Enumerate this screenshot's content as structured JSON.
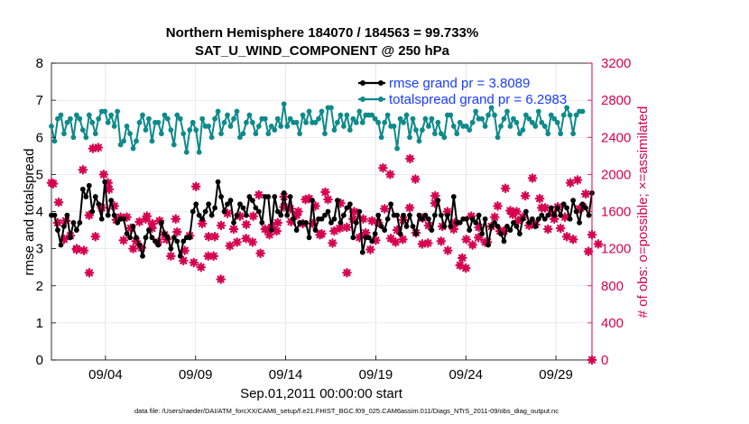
{
  "chart_data": {
    "type": "line",
    "title_line1": "Northern Hemisphere 184070 / 184563 = 99.733%",
    "title_line2": "SAT_U_WIND_COMPONENT @ 250 hPa",
    "xlabel": "Sep.01,2011 00:00:00 start",
    "ylabel_left": "rmse and totalspread",
    "ylabel_right": "# of obs: o=possible; ×=assimilated",
    "footnote": "data file: /Users/raeder/DAI/ATM_forcXX/CAM6_setup/f.e21.FHIST_BGC.f09_025.CAM6assim.011/Diags_NTrS_2011-09/obs_diag_output.nc",
    "xlim": [
      1.0,
      31.0
    ],
    "ylim_left": [
      0,
      8
    ],
    "ylim_right": [
      0,
      3200
    ],
    "x_ticks": [
      {
        "value": 4,
        "label": "09/04"
      },
      {
        "value": 9,
        "label": "09/09"
      },
      {
        "value": 14,
        "label": "09/14"
      },
      {
        "value": 19,
        "label": "09/19"
      },
      {
        "value": 24,
        "label": "09/24"
      },
      {
        "value": 29,
        "label": "09/29"
      }
    ],
    "y_ticks_left": [
      "0",
      "1",
      "2",
      "3",
      "4",
      "5",
      "6",
      "7",
      "8"
    ],
    "y_ticks_right": [
      "0",
      "400",
      "800",
      "1200",
      "1600",
      "2000",
      "2400",
      "2800",
      "3200"
    ],
    "colors": {
      "rmse": "#000000",
      "spread": "#0f8a8a",
      "obs": "#d6004f",
      "legend_text": "#1a3cff"
    },
    "legend": [
      {
        "key": "rmse",
        "label": "rmse grand pr = 3.8089"
      },
      {
        "key": "spread",
        "label": "totalspread grand pr = 6.2983"
      }
    ],
    "series_rmse": [
      3.9,
      3.9,
      3.5,
      3.1,
      3.6,
      3.9,
      3.3,
      3.7,
      3.5,
      3.7,
      4.6,
      4.4,
      4.7,
      4.0,
      4.4,
      4.2,
      3.8,
      4.8,
      3.9,
      4.3,
      3.9,
      3.7,
      3.8,
      3.8,
      3.4,
      3.3,
      3.6,
      3.3,
      3.1,
      2.8,
      3.3,
      3.5,
      3.3,
      3.2,
      3.1,
      3.7,
      3.4,
      3.3,
      3.0,
      3.3,
      3.2,
      2.8,
      3.2,
      3.3,
      3.3,
      4.0,
      4.2,
      3.9,
      3.8,
      4.0,
      4.2,
      3.9,
      4.1,
      4.8,
      4.4,
      4.0,
      4.2,
      4.3,
      3.7,
      3.9,
      4.2,
      4.1,
      3.9,
      4.4,
      4.3,
      4.1,
      4.0,
      3.7,
      4.4,
      4.4,
      3.5,
      4.4,
      4.0,
      3.9,
      4.5,
      3.9,
      4.4,
      3.8,
      3.5,
      3.7,
      3.7,
      3.7,
      3.3,
      4.3,
      3.5,
      3.8,
      3.8,
      3.9,
      4.0,
      3.7,
      3.8,
      4.3,
      3.7,
      3.9,
      4.1,
      4.2,
      3.3,
      3.7,
      4.0,
      2.9,
      3.3,
      3.3,
      3.2,
      3.4,
      3.9,
      3.6,
      3.5,
      3.8,
      4.2,
      3.9,
      3.9,
      3.4,
      3.9,
      3.6,
      3.9,
      3.6,
      3.4,
      3.9,
      3.8,
      3.9,
      3.8,
      3.5,
      3.9,
      4.3,
      3.9,
      3.6,
      3.9,
      3.6,
      4.4,
      3.7,
      3.7,
      3.8,
      3.8,
      3.5,
      3.8,
      3.7,
      3.9,
      3.4,
      3.8,
      3.1,
      3.6,
      3.7,
      3.6,
      3.4,
      3.2,
      3.6,
      3.5,
      3.7,
      3.6,
      3.4,
      3.8,
      4.0,
      3.7,
      3.8,
      3.6,
      3.8,
      3.9,
      3.8,
      3.9,
      4.1,
      3.9,
      4.1,
      3.9,
      4.2,
      4.1,
      3.8,
      4.3,
      4.0,
      3.7,
      4.2,
      4.1,
      3.9,
      4.5
    ],
    "series_spread": [
      6.3,
      5.9,
      6.5,
      6.6,
      6.1,
      6.4,
      6.5,
      6.0,
      6.6,
      6.5,
      6.2,
      6.0,
      6.6,
      6.4,
      6.1,
      6.5,
      6.7,
      6.7,
      6.4,
      6.6,
      6.3,
      6.7,
      5.8,
      5.9,
      6.3,
      6.1,
      5.7,
      5.9,
      6.4,
      6.6,
      6.2,
      6.5,
      5.9,
      6.4,
      6.4,
      6.1,
      6.6,
      6.5,
      6.2,
      5.8,
      6.6,
      6.5,
      6.1,
      5.6,
      6.2,
      6.4,
      6.2,
      5.6,
      6.5,
      6.3,
      6.3,
      6.0,
      6.5,
      6.7,
      6.1,
      6.4,
      6.6,
      6.3,
      6.5,
      6.7,
      6.0,
      6.1,
      6.4,
      6.6,
      6.4,
      6.1,
      6.3,
      6.5,
      6.5,
      6.1,
      6.3,
      6.2,
      6.5,
      6.3,
      6.9,
      6.3,
      6.5,
      6.4,
      6.4,
      6.1,
      6.6,
      6.4,
      6.7,
      6.4,
      6.4,
      6.5,
      6.7,
      6.1,
      6.8,
      6.8,
      6.2,
      6.4,
      6.6,
      6.3,
      6.6,
      6.2,
      6.5,
      6.4,
      6.7,
      6.4,
      6.6,
      6.6,
      6.6,
      6.5,
      6.4,
      6.0,
      6.4,
      6.6,
      6.3,
      6.3,
      5.7,
      6.5,
      6.4,
      6.6,
      6.0,
      6.5,
      6.2,
      5.9,
      6.2,
      6.5,
      6.3,
      6.5,
      6.1,
      6.4,
      6.1,
      6.0,
      6.6,
      6.6,
      6.3,
      6.1,
      6.4,
      6.3,
      6.3,
      6.2,
      6.4,
      6.7,
      6.5,
      6.5,
      6.3,
      6.6,
      6.8,
      6.6,
      6.0,
      6.3,
      6.5,
      6.7,
      6.3,
      6.5,
      6.4,
      6.1,
      6.2,
      6.6,
      6.5,
      6.4,
      6.3,
      6.7,
      6.4,
      6.3,
      6.1,
      6.6,
      6.5,
      6.4,
      6.1,
      6.6,
      6.8,
      6.6,
      6.1,
      6.6,
      6.7,
      6.7
    ],
    "series_obs_assimilated": [
      1910,
      1680,
      1480,
      1280,
      1300,
      1490,
      1340,
      1400,
      1190,
      1460,
      2050,
      2090,
      1560,
      1620,
      1330,
      1600,
      1640,
      1590,
      1910,
      1410,
      1660,
      1250,
      1540,
      1420,
      1540,
      1340,
      1200,
      1390,
      1490,
      1320,
      1520,
      1560,
      1420,
      1370,
      1270,
      1560,
      1350,
      1180,
      1120,
      1110,
      1380,
      1410,
      1070,
      1220,
      1340,
      1640,
      1870,
      1450,
      1470,
      1650,
      1330,
      1280,
      1330,
      1720,
      1450,
      1190,
      1580,
      1710,
      1410,
      1530,
      1550,
      1640,
      1460,
      1680,
      1270,
      1570,
      1780,
      1330,
      1410,
      1630,
      1430,
      1600,
      1480,
      1570,
      1760,
      1710,
      1630,
      1620,
      1560,
      1930,
      1470,
      1530,
      1740,
      1450,
      1660,
      1540,
      1360,
      1560,
      1730,
      1350,
      1390,
      1550,
      1690,
      1300,
      1430,
      1450,
      1520,
      1700,
      1320,
      1250,
      1370,
      1450,
      1500,
      1540,
      1480,
      1680,
      1630,
      1920,
      1310,
      1870,
      1400,
      1460,
      1510,
      1290,
      1640,
      1490,
      1370,
      1370,
      1250,
      1480,
      1450,
      1600,
      1690,
      1010,
      1280,
      1620,
      1600,
      1510,
      1410,
      1580,
      1020,
      1140,
      1300,
      1580,
      1240,
      1470,
      1430,
      1740,
      1270,
      1580,
      1440,
      1500,
      1660,
      1660,
      1390,
      1700,
      1610,
      1570,
      1600,
      1360,
      1540,
      1560,
      1450,
      1610,
      1460,
      1540,
      1640,
      1900,
      1410,
      1530,
      1520,
      1400,
      1420,
      1620,
      1330,
      1630,
      1300,
      1600,
      1630,
      1460,
      1790,
      1280,
      1350,
      1300,
      1250
    ],
    "obs_markers_extra": [
      {
        "x": 1.1,
        "y": 1900
      },
      {
        "x": 1.4,
        "y": 1700
      },
      {
        "x": 1.8,
        "y": 1500
      },
      {
        "x": 2.4,
        "y": 1200
      },
      {
        "x": 2.8,
        "y": 1180
      },
      {
        "x": 3.1,
        "y": 940
      },
      {
        "x": 3.3,
        "y": 2280
      },
      {
        "x": 3.6,
        "y": 2290
      },
      {
        "x": 3.9,
        "y": 2000
      },
      {
        "x": 4.2,
        "y": 1840
      },
      {
        "x": 4.6,
        "y": 1510
      },
      {
        "x": 5.0,
        "y": 1290
      },
      {
        "x": 5.4,
        "y": 1420
      },
      {
        "x": 5.7,
        "y": 1280
      },
      {
        "x": 6.0,
        "y": 1210
      },
      {
        "x": 6.3,
        "y": 1550
      },
      {
        "x": 6.6,
        "y": 1470
      },
      {
        "x": 7.0,
        "y": 1500
      },
      {
        "x": 7.4,
        "y": 1300
      },
      {
        "x": 7.9,
        "y": 1520
      },
      {
        "x": 8.4,
        "y": 1180
      },
      {
        "x": 8.9,
        "y": 1050
      },
      {
        "x": 9.3,
        "y": 1000
      },
      {
        "x": 9.7,
        "y": 1120
      },
      {
        "x": 10.0,
        "y": 1120
      },
      {
        "x": 10.4,
        "y": 870
      },
      {
        "x": 10.9,
        "y": 1230
      },
      {
        "x": 11.3,
        "y": 1270
      },
      {
        "x": 11.8,
        "y": 1310
      },
      {
        "x": 12.2,
        "y": 1550
      },
      {
        "x": 12.6,
        "y": 1150
      },
      {
        "x": 13.1,
        "y": 1350
      },
      {
        "x": 13.5,
        "y": 1390
      },
      {
        "x": 13.9,
        "y": 1650
      },
      {
        "x": 14.3,
        "y": 1490
      },
      {
        "x": 14.7,
        "y": 1600
      },
      {
        "x": 15.1,
        "y": 1730
      },
      {
        "x": 15.5,
        "y": 1470
      },
      {
        "x": 15.9,
        "y": 1350
      },
      {
        "x": 16.2,
        "y": 1810
      },
      {
        "x": 16.6,
        "y": 1260
      },
      {
        "x": 17.0,
        "y": 1420
      },
      {
        "x": 17.4,
        "y": 940
      },
      {
        "x": 17.8,
        "y": 1600
      },
      {
        "x": 18.3,
        "y": 1520
      },
      {
        "x": 18.7,
        "y": 1190
      },
      {
        "x": 19.0,
        "y": 1290
      },
      {
        "x": 19.4,
        "y": 2070
      },
      {
        "x": 19.8,
        "y": 2000
      },
      {
        "x": 20.1,
        "y": 1270
      },
      {
        "x": 20.5,
        "y": 1300
      },
      {
        "x": 20.9,
        "y": 2170
      },
      {
        "x": 21.2,
        "y": 1950
      },
      {
        "x": 21.6,
        "y": 1530
      },
      {
        "x": 21.9,
        "y": 1260
      },
      {
        "x": 22.3,
        "y": 1770
      },
      {
        "x": 22.7,
        "y": 1440
      },
      {
        "x": 23.0,
        "y": 1180
      },
      {
        "x": 23.4,
        "y": 1480
      },
      {
        "x": 23.8,
        "y": 1100
      },
      {
        "x": 24.0,
        "y": 990
      },
      {
        "x": 24.3,
        "y": 1550
      },
      {
        "x": 24.7,
        "y": 1320
      },
      {
        "x": 25.2,
        "y": 1270
      },
      {
        "x": 25.6,
        "y": 1540
      },
      {
        "x": 25.9,
        "y": 1390
      },
      {
        "x": 26.2,
        "y": 1850
      },
      {
        "x": 26.6,
        "y": 1570
      },
      {
        "x": 26.9,
        "y": 1500
      },
      {
        "x": 27.3,
        "y": 1770
      },
      {
        "x": 27.7,
        "y": 1960
      },
      {
        "x": 28.1,
        "y": 1740
      },
      {
        "x": 28.4,
        "y": 1640
      },
      {
        "x": 28.8,
        "y": 1580
      },
      {
        "x": 29.1,
        "y": 1650
      },
      {
        "x": 29.5,
        "y": 1540
      },
      {
        "x": 29.8,
        "y": 1910
      },
      {
        "x": 30.2,
        "y": 1940
      },
      {
        "x": 30.5,
        "y": 1650
      },
      {
        "x": 30.8,
        "y": 1170
      },
      {
        "x": 31.0,
        "y": 0
      }
    ]
  }
}
